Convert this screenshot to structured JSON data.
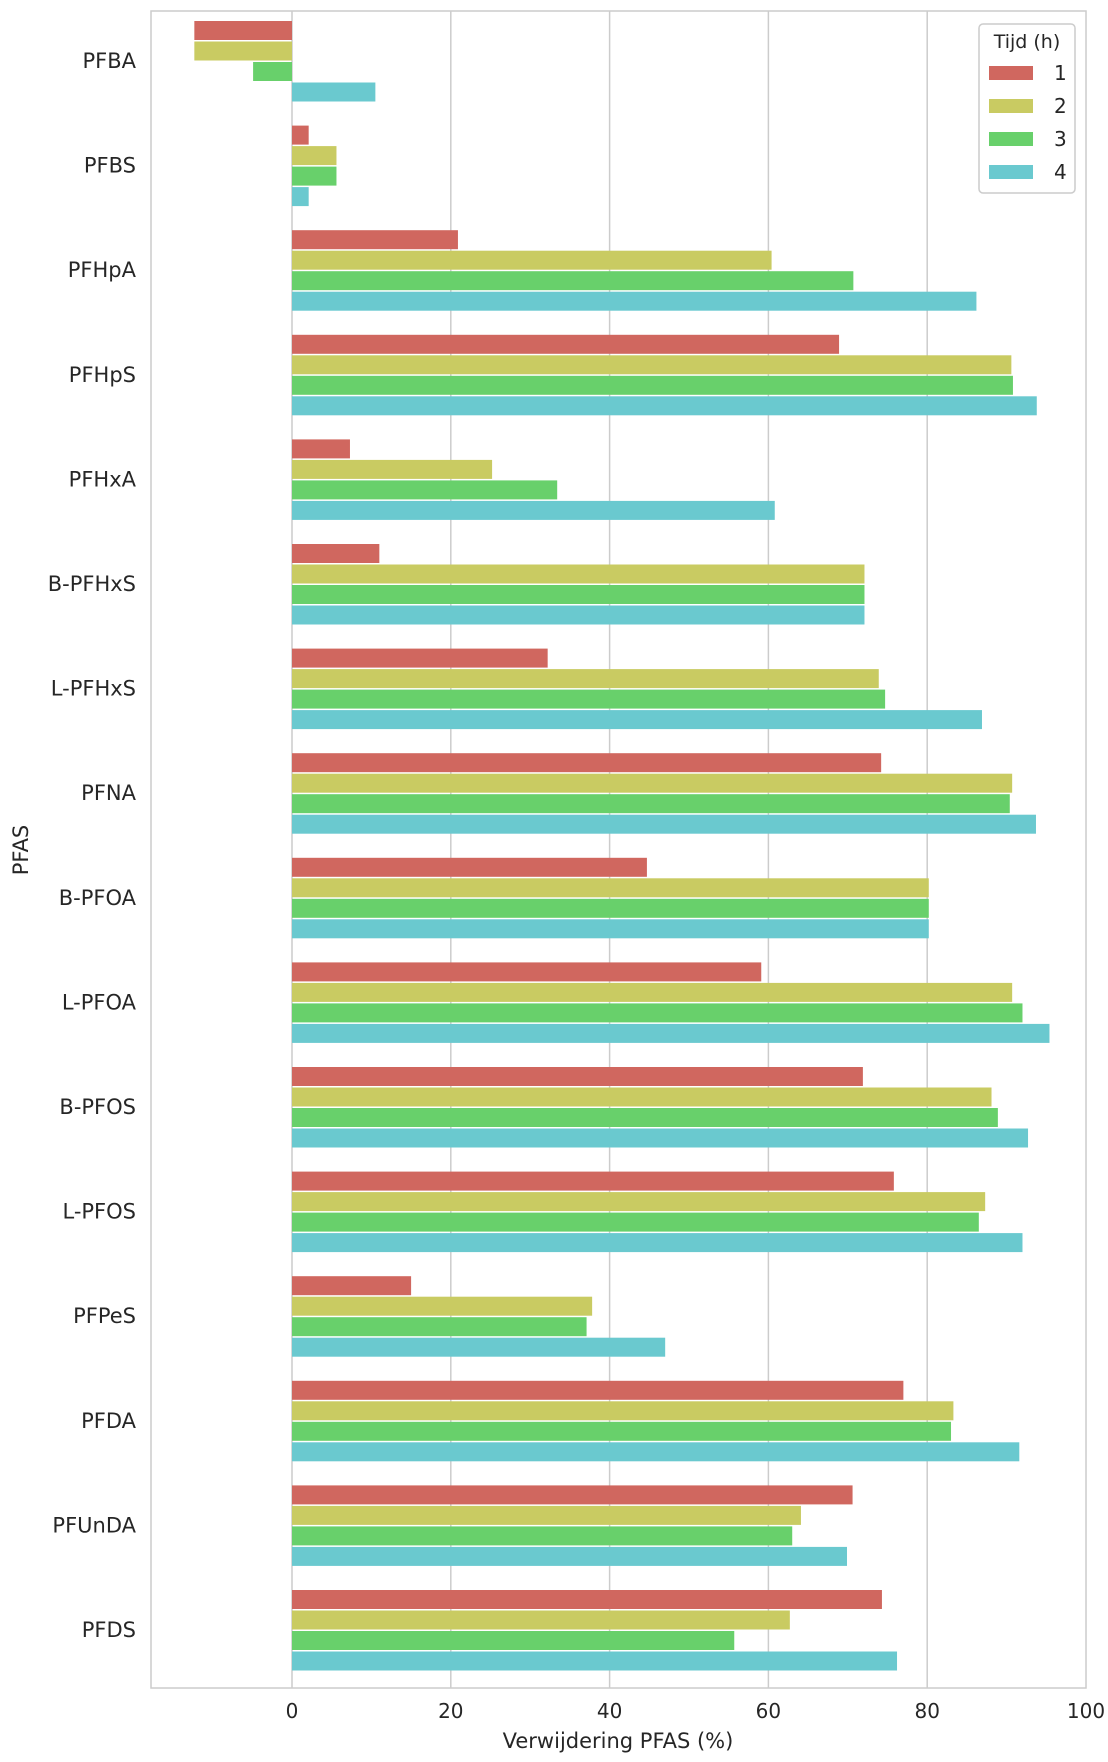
{
  "chart_data": {
    "type": "bar",
    "orientation": "horizontal",
    "xlabel": "Verwijdering PFAS (%)",
    "ylabel": "PFAS",
    "xlim": [
      -18,
      100
    ],
    "xticks": [
      0,
      20,
      40,
      60,
      80,
      100
    ],
    "grid": "vertical",
    "legend": {
      "title": "Tijd (h)",
      "placement": "top-right"
    },
    "categories": [
      "PFBA",
      "PFBS",
      "PFHpA",
      "PFHpS",
      "PFHxA",
      "B-PFHxS",
      "L-PFHxS",
      "PFNA",
      "B-PFOA",
      "L-PFOA",
      "B-PFOS",
      "L-PFOS",
      "PFPeS",
      "PFDA",
      "PFUnDA",
      "PFDS"
    ],
    "series": [
      {
        "name": "1",
        "color": "#d0675f",
        "values": [
          -12.3,
          2.1,
          20.9,
          68.9,
          7.3,
          11.0,
          32.2,
          74.2,
          44.7,
          59.1,
          71.9,
          75.8,
          15.0,
          77.0,
          70.6,
          74.3
        ]
      },
      {
        "name": "2",
        "color": "#c9cb62",
        "values": [
          -12.3,
          5.6,
          60.4,
          90.6,
          25.2,
          72.1,
          73.9,
          90.7,
          80.2,
          90.7,
          88.1,
          87.3,
          37.8,
          83.3,
          64.1,
          62.7
        ]
      },
      {
        "name": "3",
        "color": "#68d06b",
        "values": [
          -4.9,
          5.6,
          70.7,
          90.8,
          33.4,
          72.1,
          74.7,
          90.4,
          80.2,
          92.0,
          88.9,
          86.5,
          37.1,
          83.0,
          63.0,
          55.7
        ]
      },
      {
        "name": "4",
        "color": "#6ac9cf",
        "values": [
          10.5,
          2.1,
          86.2,
          93.8,
          60.8,
          72.1,
          86.9,
          93.7,
          80.2,
          95.4,
          92.7,
          92.0,
          47.0,
          91.6,
          69.9,
          76.2
        ]
      }
    ]
  }
}
